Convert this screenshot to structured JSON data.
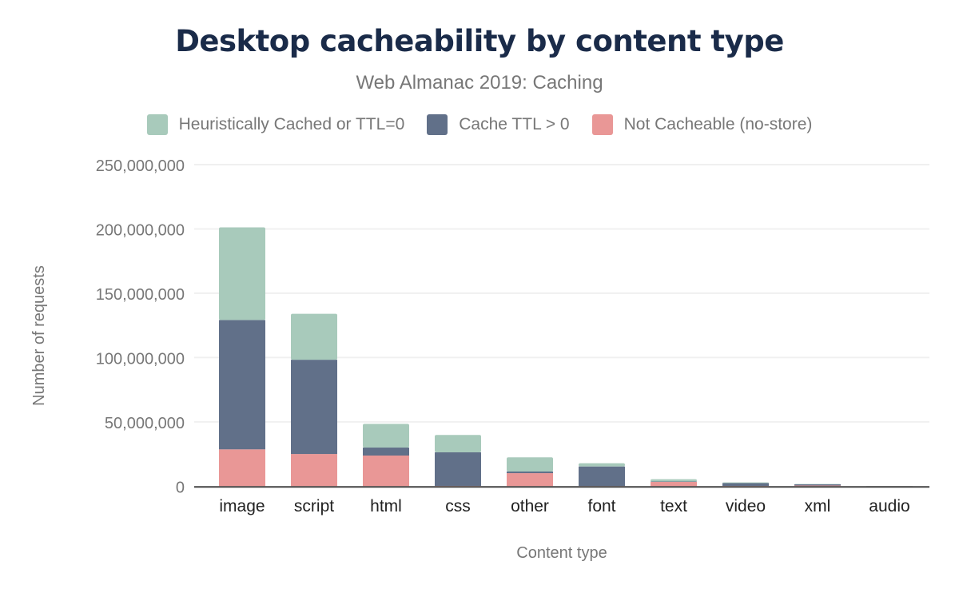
{
  "chart_data": {
    "type": "bar",
    "stacked": true,
    "title": "Desktop cacheability by content type",
    "subtitle": "Web Almanac 2019: Caching",
    "xlabel": "Content type",
    "ylabel": "Number of requests",
    "ylim": [
      0,
      250000000
    ],
    "yticks": [
      0,
      50000000,
      100000000,
      150000000,
      200000000,
      250000000
    ],
    "ytick_labels": [
      "0",
      "50,000,000",
      "100,000,000",
      "150,000,000",
      "200,000,000",
      "250,000,000"
    ],
    "grid": true,
    "legend_position": "top",
    "categories": [
      "image",
      "script",
      "html",
      "css",
      "other",
      "font",
      "text",
      "video",
      "xml",
      "audio"
    ],
    "series": [
      {
        "name": "Not Cacheable (no-store)",
        "color": "#e99796",
        "values": [
          28600000,
          25000000,
          23800000,
          200000,
          10100000,
          100000,
          3300000,
          200000,
          500000,
          50000
        ]
      },
      {
        "name": "Cache TTL > 0",
        "color": "#617089",
        "values": [
          100600000,
          73300000,
          6200000,
          26100000,
          1300000,
          15200000,
          300000,
          2200000,
          900000,
          50000
        ]
      },
      {
        "name": "Heuristically Cached or TTL=0",
        "color": "#a8cabb",
        "values": [
          72000000,
          35700000,
          18400000,
          13500000,
          11000000,
          2500000,
          1800000,
          500000,
          300000,
          50000
        ]
      }
    ],
    "legend_order": [
      2,
      1,
      0
    ]
  }
}
